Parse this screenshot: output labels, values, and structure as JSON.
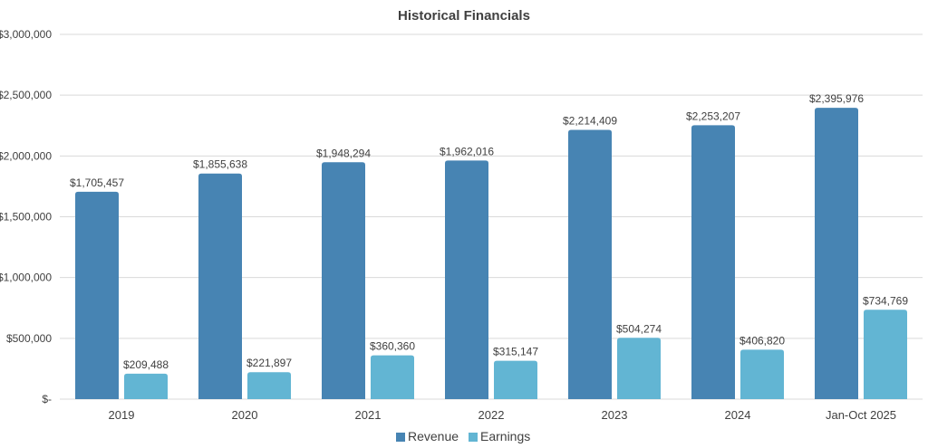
{
  "chart_data": {
    "type": "bar",
    "title": "Historical Financials",
    "categories": [
      "2019",
      "2020",
      "2021",
      "2022",
      "2023",
      "2024",
      "Jan-Oct 2025"
    ],
    "series": [
      {
        "name": "Revenue",
        "color": "#4784b3",
        "values": [
          1705457,
          1855638,
          1948294,
          1962016,
          2214409,
          2253207,
          2395976
        ],
        "labels": [
          "$1,705,457",
          "$1,855,638",
          "$1,948,294",
          "$1,962,016",
          "$2,214,409",
          "$2,253,207",
          "$2,395,976"
        ]
      },
      {
        "name": "Earnings",
        "color": "#62b5d3",
        "values": [
          209488,
          221897,
          360360,
          315147,
          504274,
          406820,
          734769
        ],
        "labels": [
          "$209,488",
          "$221,897",
          "$360,360",
          "$315,147",
          "$504,274",
          "$406,820",
          "$734,769"
        ]
      }
    ],
    "ylim": [
      0,
      3000000
    ],
    "yticks": [
      0,
      500000,
      1000000,
      1500000,
      2000000,
      2500000,
      3000000
    ],
    "ytick_labels": [
      "$-",
      "$500,000",
      "$1,000,000",
      "$1,500,000",
      "$2,000,000",
      "$2,500,000",
      "$3,000,000"
    ],
    "grid": true,
    "legend_position": "bottom"
  }
}
